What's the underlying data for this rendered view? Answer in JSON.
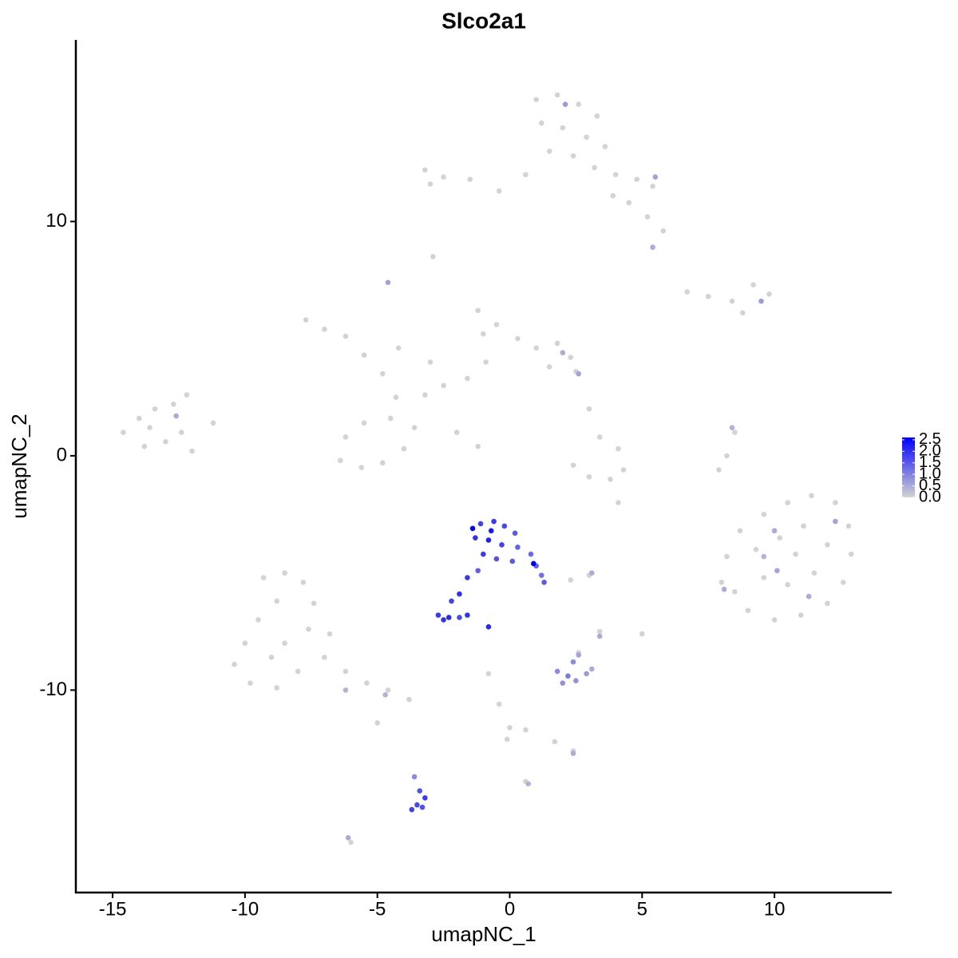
{
  "chart_data": {
    "type": "scatter",
    "title": "Slco2a1",
    "x_label": "umapNC_1",
    "y_label": "umapNC_2",
    "xlim": [
      -16.39,
      14.43
    ],
    "ylim": [
      -18.64,
      17.75
    ],
    "xticks": [
      -15,
      -10,
      -5,
      0,
      5,
      10
    ],
    "yticks": [
      -10,
      0,
      10
    ],
    "colors": [
      "#d3d3d3",
      "#0000ff"
    ],
    "colorlim": [
      0,
      2.6
    ],
    "colorticks": [
      {
        "value": 0,
        "label": "0.0"
      },
      0.5,
      {
        "value": 1,
        "label": "1.0"
      },
      1.5,
      {
        "value": 2,
        "label": "2.0"
      },
      2.5
    ],
    "x": [
      1.0,
      1.8,
      2.6,
      3.3,
      1.2,
      2.0,
      2.9,
      3.6,
      1.5,
      2.4,
      3.2,
      4.0,
      4.8,
      5.4,
      4.5,
      5.2,
      5.8,
      3.9,
      0.6,
      -0.4,
      -1.5,
      -2.5,
      -3.2,
      -3.0,
      -2.9,
      6.7,
      7.5,
      8.4,
      9.2,
      9.8,
      8.8,
      -7.7,
      -7.0,
      -6.2,
      -5.5,
      -4.8,
      -4.3,
      -4.5,
      -5.5,
      -6.2,
      -6.4,
      -5.6,
      -4.8,
      -4.0,
      -3.6,
      -3.2,
      -2.5,
      -1.6,
      -0.9,
      -1.0,
      -1.2,
      -0.5,
      0.3,
      1.0,
      1.8,
      2.3,
      2.5,
      1.5,
      -2.0,
      -1.2,
      -3.0,
      -4.2,
      3.0,
      3.4,
      2.4,
      3.0,
      3.8,
      4.3,
      4.1,
      8.5,
      8.2,
      7.9,
      -14.6,
      -14.0,
      -13.4,
      -12.7,
      -12.2,
      -11.2,
      -13.8,
      -13.0,
      -12.4,
      -12.0,
      -13.6,
      8.2,
      8.7,
      9.6,
      10.5,
      11.4,
      12.3,
      12.8,
      12.9,
      12.6,
      12.0,
      11.0,
      10.0,
      9.0,
      8.5,
      9.3,
      10.2,
      11.1,
      12.0,
      11.5,
      10.5,
      9.6,
      10.8,
      8.0,
      -9.3,
      -8.5,
      -7.8,
      -7.4,
      -8.8,
      -9.5,
      -10.0,
      -10.4,
      -9.8,
      -8.8,
      -8.0,
      -7.0,
      -6.2,
      -5.4,
      -4.6,
      -3.8,
      -8.5,
      -7.6,
      -9.0,
      -6.8,
      -5.0,
      -0.8,
      -0.4,
      0.0,
      -0.1,
      0.6,
      1.7,
      2.4,
      0.6,
      5.0,
      3.4,
      2.6,
      3.0,
      2.3,
      -6.0,
      4.1,
      2.1,
      5.5,
      5.4,
      -4.6,
      9.5,
      2.0,
      2.6,
      8.4,
      -12.6,
      10.0,
      12.3,
      10.1,
      11.3,
      8.1,
      9.6,
      -4.7,
      -6.2,
      2.4,
      0.7,
      3.1,
      -6.1,
      3.4,
      1.8,
      2.2,
      2.5,
      2.9,
      2.4,
      2.0,
      2.6,
      3.1,
      -3.6,
      -3.4,
      -3.2,
      -3.5,
      -3.7,
      -3.3,
      -1.1,
      -0.6,
      -0.2,
      0.2,
      -1.3,
      -0.8,
      -0.3,
      0.3,
      0.8,
      -1.0,
      -0.5,
      0.1,
      1.0,
      1.2,
      1.3,
      -1.4,
      0.9,
      -0.7,
      -1.2,
      -1.6,
      -1.9,
      -2.2,
      -2.7,
      -2.3,
      -1.9,
      -2.5,
      -0.8,
      -1.6
    ],
    "y": [
      15.2,
      15.4,
      15.0,
      14.5,
      14.2,
      14.0,
      13.6,
      13.2,
      13.0,
      12.8,
      12.3,
      12.0,
      11.8,
      11.5,
      10.8,
      10.2,
      9.6,
      11.1,
      12.0,
      11.3,
      11.8,
      11.9,
      12.2,
      11.6,
      8.5,
      7.0,
      6.8,
      6.6,
      7.3,
      6.9,
      6.1,
      5.8,
      5.4,
      5.1,
      4.3,
      3.5,
      2.5,
      1.6,
      1.4,
      0.8,
      -0.2,
      -0.5,
      -0.3,
      0.3,
      1.2,
      2.6,
      3.0,
      3.3,
      4.0,
      5.2,
      6.2,
      5.6,
      5.0,
      4.6,
      4.8,
      4.2,
      3.6,
      3.8,
      1.0,
      0.4,
      4.0,
      4.6,
      2.0,
      0.8,
      -0.4,
      -0.9,
      -1.0,
      -0.6,
      0.3,
      1.0,
      0.0,
      -0.6,
      1.0,
      1.6,
      2.0,
      2.2,
      2.6,
      1.4,
      0.4,
      0.6,
      1.0,
      0.2,
      1.2,
      -4.3,
      -3.2,
      -2.5,
      -2.0,
      -1.7,
      -2.0,
      -3.0,
      -4.2,
      -5.4,
      -6.3,
      -6.8,
      -7.0,
      -6.6,
      -5.8,
      -4.0,
      -3.5,
      -3.0,
      -3.8,
      -5.0,
      -5.5,
      -5.2,
      -4.2,
      -5.4,
      -5.2,
      -5.0,
      -5.4,
      -6.3,
      -6.2,
      -7.0,
      -8.0,
      -8.9,
      -9.7,
      -9.9,
      -9.2,
      -8.6,
      -9.2,
      -9.7,
      -10.0,
      -10.4,
      -8.0,
      -7.4,
      -8.6,
      -7.6,
      -11.4,
      -9.3,
      -10.6,
      -11.6,
      -12.1,
      -11.7,
      -12.2,
      -12.6,
      -13.9,
      -7.6,
      -7.5,
      -8.4,
      -5.1,
      -5.3,
      -16.5,
      -2.0,
      15.0,
      11.9,
      8.9,
      7.4,
      6.6,
      4.4,
      3.5,
      1.2,
      1.7,
      -3.2,
      -2.8,
      -4.9,
      -6.0,
      -5.7,
      -4.3,
      -10.2,
      -10.0,
      -12.7,
      -14.0,
      -5.0,
      -16.3,
      -7.7,
      -9.2,
      -9.4,
      -9.6,
      -9.3,
      -8.8,
      -9.7,
      -8.5,
      -9.1,
      -13.7,
      -14.3,
      -14.6,
      -14.9,
      -15.1,
      -15.0,
      -2.9,
      -2.8,
      -3.0,
      -3.3,
      -3.5,
      -3.6,
      -3.8,
      -3.9,
      -4.2,
      -4.2,
      -4.4,
      -4.5,
      -4.7,
      -5.1,
      -5.4,
      -3.1,
      -4.6,
      -3.2,
      -4.9,
      -5.2,
      -5.9,
      -6.2,
      -6.8,
      -6.9,
      -6.9,
      -7.0,
      -7.3,
      -6.8
    ],
    "values": [
      0,
      0,
      0,
      0,
      0,
      0,
      0,
      0,
      0,
      0,
      0,
      0,
      0,
      0,
      0,
      0,
      0,
      0,
      0,
      0,
      0,
      0,
      0,
      0,
      0,
      0,
      0,
      0,
      0,
      0,
      0,
      0,
      0,
      0,
      0,
      0,
      0,
      0,
      0,
      0,
      0,
      0,
      0,
      0,
      0,
      0,
      0,
      0,
      0,
      0,
      0,
      0,
      0,
      0,
      0,
      0,
      0,
      0,
      0,
      0,
      0,
      0,
      0,
      0,
      0,
      0,
      0,
      0,
      0,
      0,
      0,
      0,
      0,
      0,
      0,
      0,
      0,
      0,
      0,
      0,
      0,
      0,
      0,
      0,
      0,
      0,
      0,
      0,
      0,
      0,
      0,
      0,
      0,
      0,
      0,
      0,
      0,
      0,
      0,
      0,
      0,
      0,
      0,
      0,
      0,
      0,
      0,
      0,
      0,
      0,
      0,
      0,
      0,
      0,
      0,
      0,
      0,
      0,
      0,
      0,
      0,
      0,
      0,
      0,
      0,
      0,
      0,
      0,
      0,
      0,
      0,
      0,
      0,
      0,
      0,
      0,
      0,
      0,
      0,
      0,
      0,
      0,
      0.7,
      0.6,
      0.5,
      0.6,
      0.7,
      0.5,
      0.6,
      0.4,
      0.5,
      0.5,
      0.6,
      0.6,
      0.5,
      0.5,
      0.4,
      0.4,
      0.4,
      0.5,
      0.4,
      0.5,
      0.5,
      0.5,
      0.9,
      1.1,
      0.8,
      0.7,
      0.9,
      0.8,
      0.6,
      0.5,
      0.9,
      1.6,
      1.9,
      1.7,
      1.8,
      1.6,
      1.8,
      1.9,
      1.7,
      1.5,
      2.0,
      2.2,
      1.8,
      1.4,
      1.3,
      1.9,
      1.6,
      1.5,
      1.4,
      1.2,
      1.5,
      2.6,
      2.6,
      2.3,
      1.4,
      1.9,
      2.0,
      1.8,
      1.9,
      2.1,
      1.7,
      2.0,
      2.1,
      2.0
    ]
  }
}
